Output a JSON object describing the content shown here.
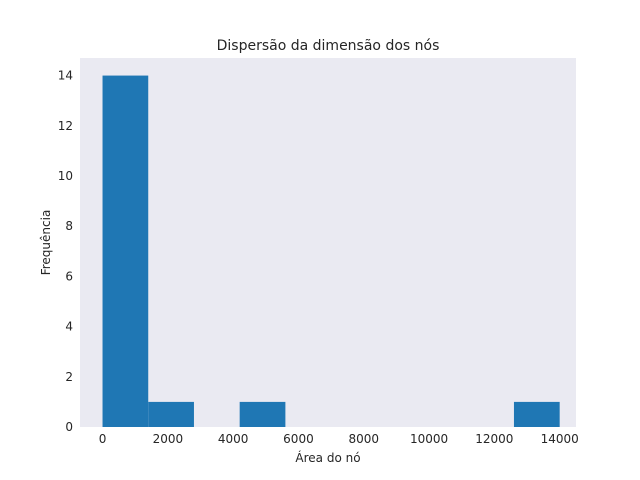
{
  "chart_data": {
    "type": "bar",
    "title": "Dispersão da dimensão dos nós",
    "xlabel": "Área do nó",
    "ylabel": "Frequência",
    "xlim": [
      -690,
      14500
    ],
    "ylim": [
      0,
      14.7
    ],
    "xticks": [
      0,
      2000,
      4000,
      6000,
      8000,
      10000,
      12000,
      14000
    ],
    "yticks": [
      0,
      2,
      4,
      6,
      8,
      10,
      12,
      14
    ],
    "grid": false,
    "background": "#eaeaf2",
    "bar_color": "#1f77b4",
    "bins": [
      {
        "x0": 0,
        "x1": 1400,
        "count": 14
      },
      {
        "x0": 1400,
        "x1": 2800,
        "count": 1
      },
      {
        "x0": 2800,
        "x1": 4200,
        "count": 0
      },
      {
        "x0": 4200,
        "x1": 5600,
        "count": 1
      },
      {
        "x0": 5600,
        "x1": 7000,
        "count": 0
      },
      {
        "x0": 7000,
        "x1": 8400,
        "count": 0
      },
      {
        "x0": 8400,
        "x1": 9800,
        "count": 0
      },
      {
        "x0": 9800,
        "x1": 11200,
        "count": 0
      },
      {
        "x0": 11200,
        "x1": 12600,
        "count": 0
      },
      {
        "x0": 12600,
        "x1": 14000,
        "count": 1
      }
    ]
  }
}
